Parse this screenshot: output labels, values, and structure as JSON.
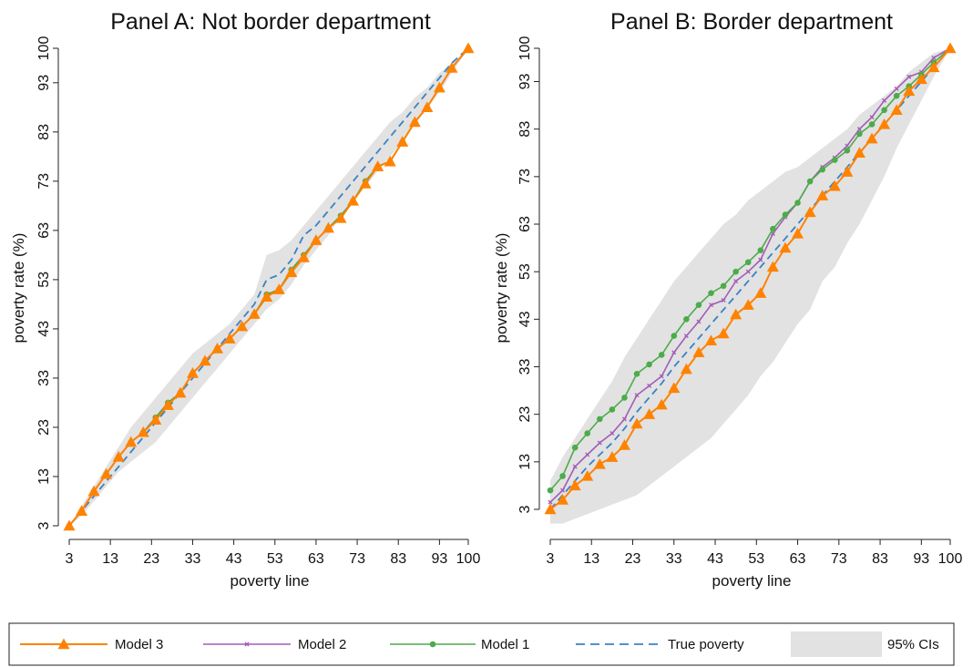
{
  "colors": {
    "model3": "#ff8200",
    "model2": "#a35cb6",
    "model1": "#4cab4a",
    "true": "#3b82c4",
    "ci": "#e2e2e2"
  },
  "chart_data": [
    {
      "type": "line",
      "title": "Panel A: Not border department",
      "xlabel": "poverty line",
      "ylabel": "poverty rate (%)",
      "xlim": [
        3,
        100
      ],
      "ylim": [
        3,
        100
      ],
      "xticks": [
        "3",
        "13",
        "23",
        "33",
        "43",
        "53",
        "63",
        "73",
        "83",
        "93",
        "100"
      ],
      "yticks": [
        "3",
        "13",
        "23",
        "33",
        "43",
        "53",
        "63",
        "73",
        "83",
        "93",
        "100"
      ],
      "x": [
        3,
        6,
        9,
        12,
        15,
        18,
        21,
        24,
        27,
        30,
        33,
        36,
        39,
        42,
        45,
        48,
        51,
        54,
        57,
        60,
        63,
        66,
        69,
        72,
        75,
        78,
        81,
        84,
        87,
        90,
        93,
        96,
        100
      ],
      "ci_lower": [
        3,
        5,
        8,
        11,
        14,
        16,
        18,
        20,
        23,
        26,
        29,
        32,
        35,
        38,
        41,
        44,
        47,
        49,
        52,
        56,
        59,
        62,
        66,
        69,
        72,
        75,
        78,
        81,
        85,
        88,
        91,
        95,
        100
      ],
      "ci_upper": [
        3,
        7,
        11,
        15,
        19,
        23,
        26,
        29,
        32,
        35,
        38,
        40,
        42,
        44,
        47,
        50,
        58,
        59,
        61,
        64,
        67,
        70,
        73,
        76,
        79,
        82,
        85,
        87,
        90,
        92,
        95,
        97,
        100
      ],
      "series": [
        {
          "name": "True poverty",
          "key": "true",
          "values": [
            3,
            6,
            9,
            12,
            15,
            18,
            21,
            24,
            27,
            30,
            33,
            36,
            39,
            42,
            45,
            48,
            53,
            54,
            57,
            62,
            64,
            67,
            70,
            73,
            76,
            79,
            82,
            85,
            88,
            91,
            94,
            97,
            100
          ]
        },
        {
          "name": "Model 2",
          "key": "model2",
          "values": [
            3,
            6,
            10,
            13.5,
            17,
            20,
            22,
            25,
            28,
            30,
            34,
            36.5,
            39,
            41,
            43.5,
            46,
            50,
            51,
            55,
            58,
            61,
            63.5,
            66,
            69,
            73,
            76,
            77,
            81,
            85,
            88,
            92,
            96,
            100
          ]
        },
        {
          "name": "Model 1",
          "key": "model1",
          "values": [
            3,
            6,
            10,
            13.5,
            17,
            20,
            22,
            25,
            28,
            30,
            34,
            36.5,
            39,
            41,
            43.5,
            46,
            50,
            51,
            55,
            58,
            61,
            63.5,
            66,
            69,
            73,
            76,
            77,
            81,
            85,
            88,
            92,
            96,
            100
          ]
        },
        {
          "name": "Model 3",
          "key": "model3",
          "values": [
            3,
            6,
            10,
            13.5,
            17,
            20,
            22,
            24.5,
            27.5,
            30,
            34,
            36.5,
            39,
            41,
            43.5,
            46,
            49.5,
            51,
            54.5,
            57.5,
            61,
            63.5,
            65.5,
            69,
            72.5,
            76,
            77,
            81,
            85,
            88,
            92,
            96,
            100
          ]
        }
      ]
    },
    {
      "type": "line",
      "title": "Panel B: Border department",
      "xlabel": "poverty line",
      "ylabel": "poverty rate (%)",
      "xlim": [
        3,
        100
      ],
      "ylim": [
        3,
        100
      ],
      "xticks": [
        "3",
        "13",
        "23",
        "33",
        "43",
        "53",
        "63",
        "73",
        "83",
        "93",
        "100"
      ],
      "yticks": [
        "3",
        "13",
        "23",
        "33",
        "43",
        "53",
        "63",
        "73",
        "83",
        "93",
        "100"
      ],
      "x": [
        3,
        6,
        9,
        12,
        15,
        18,
        21,
        24,
        27,
        30,
        33,
        36,
        39,
        42,
        45,
        48,
        51,
        54,
        57,
        60,
        63,
        66,
        69,
        72,
        75,
        78,
        81,
        84,
        87,
        90,
        93,
        96,
        100
      ],
      "ci_lower": [
        0,
        0,
        1,
        2,
        3,
        4,
        5,
        6,
        8,
        10,
        12,
        14,
        16,
        18,
        21,
        24,
        27,
        31,
        34,
        38,
        42,
        45,
        51,
        54,
        59,
        63,
        68,
        73,
        79,
        84,
        89,
        94,
        100
      ],
      "ci_upper": [
        9,
        14,
        18,
        22,
        26,
        30,
        35,
        39,
        43,
        47,
        51,
        54,
        57,
        60,
        63,
        65,
        68,
        70,
        72,
        74,
        75,
        77,
        79,
        81,
        83,
        86,
        88,
        90,
        92,
        95,
        97,
        99,
        100
      ],
      "series": [
        {
          "name": "True poverty",
          "key": "true",
          "values": [
            3,
            6,
            9,
            12,
            14.5,
            17,
            20,
            23.5,
            26.5,
            29.5,
            33,
            36,
            39,
            42,
            45,
            48,
            51,
            54,
            57,
            60,
            63,
            66,
            69,
            72,
            75,
            78,
            81,
            84,
            87,
            90,
            93,
            96,
            100
          ]
        },
        {
          "name": "Model 2",
          "key": "model2",
          "values": [
            4.5,
            7,
            12,
            14.5,
            17,
            19,
            22,
            27,
            29,
            31,
            36,
            39.5,
            42.5,
            46,
            47,
            51,
            53,
            55.5,
            61,
            64.5,
            67.5,
            72,
            75,
            77,
            79.5,
            83,
            85.5,
            89,
            91.5,
            94,
            95,
            98,
            100
          ]
        },
        {
          "name": "Model 1",
          "key": "model1",
          "values": [
            7,
            10,
            16,
            19,
            22,
            24,
            26.5,
            31.5,
            33.5,
            35.5,
            39.5,
            43,
            46,
            48.5,
            50,
            53,
            55,
            57.5,
            62,
            65,
            67.5,
            72,
            74.5,
            76.5,
            78.5,
            82,
            84,
            87,
            90,
            92,
            94.5,
            97,
            100
          ]
        },
        {
          "name": "Model 3",
          "key": "model3",
          "values": [
            3,
            5,
            8,
            10,
            12.5,
            14,
            16.5,
            21,
            23,
            25,
            28.5,
            32.5,
            36,
            38.5,
            40,
            44,
            46,
            48.5,
            54,
            58,
            61,
            65.5,
            69,
            71,
            74,
            78,
            81,
            84,
            87,
            91,
            93.5,
            96,
            100
          ]
        }
      ]
    }
  ],
  "legend": {
    "items": [
      {
        "label": "Model 3",
        "key": "model3"
      },
      {
        "label": "Model 2",
        "key": "model2"
      },
      {
        "label": "Model 1",
        "key": "model1"
      },
      {
        "label": "True poverty",
        "key": "true"
      },
      {
        "label": "95% CIs",
        "key": "ci"
      }
    ]
  }
}
